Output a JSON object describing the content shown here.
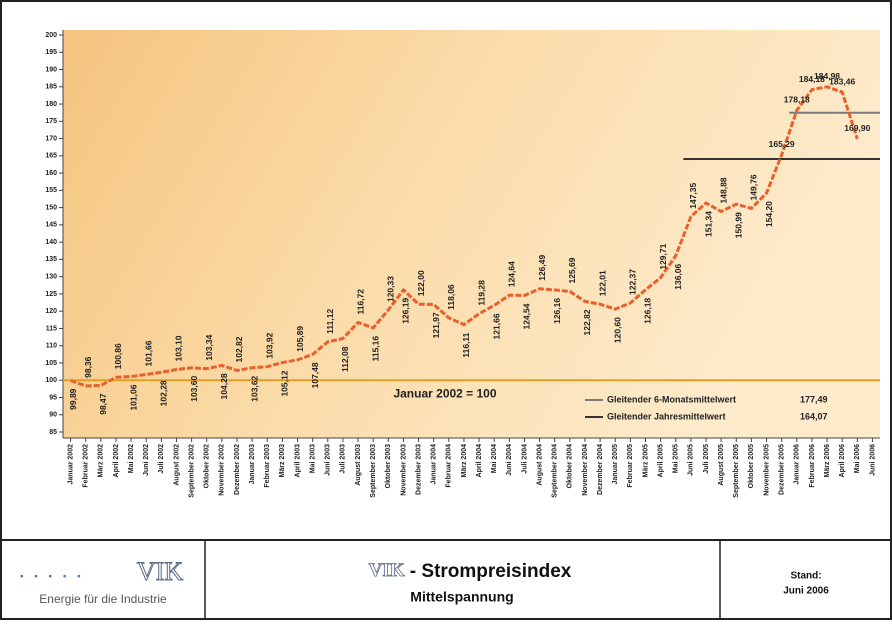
{
  "chart_data": {
    "type": "line",
    "categories": [
      "Januar 2002",
      "Februar 2002",
      "März 2002",
      "April 2002",
      "Mai 2002",
      "Juni 2002",
      "Juli 2002",
      "August 2002",
      "September 2002",
      "Oktober 2002",
      "November 2002",
      "Dezember 2002",
      "Januar 2003",
      "Februar 2003",
      "März 2003",
      "April 2003",
      "Mai 2003",
      "Juni 2003",
      "Juli 2003",
      "August 2003",
      "September 2003",
      "Oktober 2003",
      "November 2003",
      "Dezember 2003",
      "Januar 2004",
      "Februar 2004",
      "März 2004",
      "April 2004",
      "Mai 2004",
      "Juni 2004",
      "Juli 2004",
      "August 2004",
      "September 2004",
      "Oktober 2004",
      "November 2004",
      "Dezember 2004",
      "Januar 2005",
      "Februar 2005",
      "März 2005",
      "April 2005",
      "Mai 2005",
      "Juni 2005",
      "Juli 2005",
      "August 2005",
      "September 2005",
      "Oktober 2005",
      "November 2005",
      "Dezember 2005",
      "Januar 2006",
      "Februar 2006",
      "März 2006",
      "April 2006",
      "Mai 2006",
      "Juni 2006"
    ],
    "values": [
      99.89,
      98.36,
      98.47,
      100.86,
      101.06,
      101.66,
      102.28,
      103.1,
      103.6,
      103.34,
      104.28,
      102.82,
      103.62,
      103.92,
      105.12,
      105.89,
      107.48,
      111.12,
      112.08,
      116.72,
      115.16,
      120.33,
      126.19,
      122.0,
      121.97,
      118.06,
      116.11,
      119.28,
      121.66,
      124.64,
      124.54,
      126.49,
      126.16,
      125.69,
      122.82,
      122.01,
      120.6,
      122.37,
      126.18,
      129.71,
      136.06,
      147.35,
      151.34,
      148.88,
      150.99,
      149.76,
      154.2,
      165.29,
      178.18,
      184.18,
      184.98,
      183.46,
      169.9,
      null
    ],
    "value_labels": [
      "99,89",
      "98,36",
      "98,47",
      "100,86",
      "101,06",
      "101,66",
      "102,28",
      "103,10",
      "103,60",
      "103,34",
      "104,28",
      "102,82",
      "103,62",
      "103,92",
      "105,12",
      "105,89",
      "107,48",
      "111,12",
      "112,08",
      "116,72",
      "115,16",
      "120,33",
      "126,19",
      "122,00",
      "121,97",
      "118,06",
      "116,11",
      "119,28",
      "121,66",
      "124,64",
      "124,54",
      "126,49",
      "126,16",
      "125,69",
      "122,82",
      "122,01",
      "120,60",
      "122,37",
      "126,18",
      "129,71",
      "136,06",
      "147,35",
      "151,34",
      "148,88",
      "150,99",
      "149,76",
      "154,20",
      "165,29",
      "178,18",
      "184,18",
      "184,98",
      "183,46",
      "169,90",
      null
    ],
    "color": "#e8602c",
    "ylim": [
      85,
      200
    ],
    "yticks": [
      85,
      90,
      95,
      100,
      105,
      110,
      115,
      120,
      125,
      130,
      135,
      140,
      145,
      150,
      155,
      160,
      165,
      170,
      175,
      180,
      185,
      190,
      195,
      200
    ],
    "baseline": {
      "value": 100,
      "label": "Januar 2002 = 100",
      "color": "#e0a020"
    },
    "reference_lines": [
      {
        "name": "Gleitender 6-Monatsmittelwert",
        "value": 177.49,
        "value_label": "177,49",
        "color": "#7a7a7a"
      },
      {
        "name": "Gleitender Jahresmittelwert",
        "value": 164.07,
        "value_label": "164,07",
        "color": "#333333"
      }
    ],
    "legend": "lower right"
  },
  "footer": {
    "logo": "VIK",
    "tagline": "Energie für die Industrie",
    "title_logo": "VIK",
    "title": " - Strompreisindex",
    "subtitle": "Mittelspannung",
    "stand": "Stand:",
    "date": "Juni 2006"
  }
}
